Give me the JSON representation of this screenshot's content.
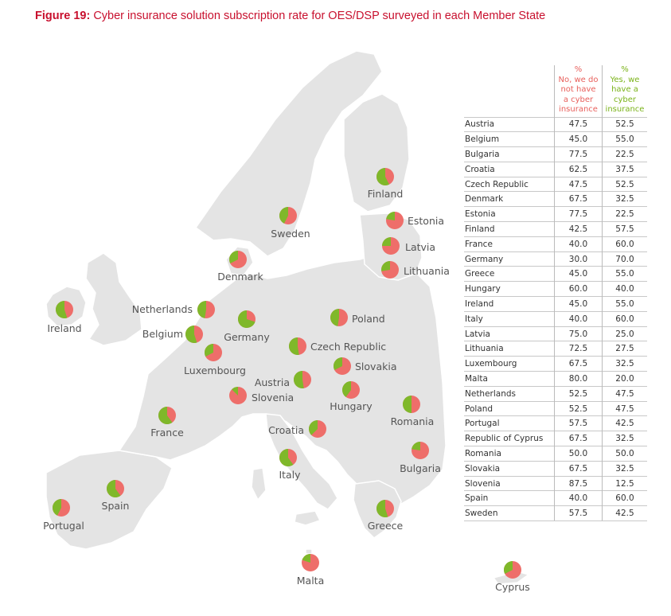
{
  "figure": {
    "label": "Figure 19:",
    "title": " Cyber insurance solution subscription rate for OES/DSP surveyed in each Member State"
  },
  "colors": {
    "no": "#ee6e6a",
    "yes": "#7fb82a",
    "land": "#e4e4e4",
    "border": "#ffffff"
  },
  "table": {
    "header_no": [
      "%",
      "No, we do",
      "not have",
      "a cyber",
      "insurance"
    ],
    "header_yes": [
      "%",
      "Yes, we",
      "have a",
      "cyber",
      "insurance"
    ]
  },
  "chart_data": {
    "type": "pie",
    "series_names": [
      "No, we do not have a cyber insurance",
      "Yes, we have a cyber insurance"
    ],
    "rows": [
      {
        "country": "Austria",
        "no": 47.5,
        "yes": 52.5
      },
      {
        "country": "Belgium",
        "no": 45.0,
        "yes": 55.0
      },
      {
        "country": "Bulgaria",
        "no": 77.5,
        "yes": 22.5
      },
      {
        "country": "Croatia",
        "no": 62.5,
        "yes": 37.5
      },
      {
        "country": "Czech Republic",
        "no": 47.5,
        "yes": 52.5
      },
      {
        "country": "Denmark",
        "no": 67.5,
        "yes": 32.5
      },
      {
        "country": "Estonia",
        "no": 77.5,
        "yes": 22.5
      },
      {
        "country": "Finland",
        "no": 42.5,
        "yes": 57.5
      },
      {
        "country": "France",
        "no": 40.0,
        "yes": 60.0
      },
      {
        "country": "Germany",
        "no": 30.0,
        "yes": 70.0
      },
      {
        "country": "Greece",
        "no": 45.0,
        "yes": 55.0
      },
      {
        "country": "Hungary",
        "no": 60.0,
        "yes": 40.0
      },
      {
        "country": "Ireland",
        "no": 45.0,
        "yes": 55.0
      },
      {
        "country": "Italy",
        "no": 40.0,
        "yes": 60.0
      },
      {
        "country": "Latvia",
        "no": 75.0,
        "yes": 25.0
      },
      {
        "country": "Lithuania",
        "no": 72.5,
        "yes": 27.5
      },
      {
        "country": "Luxembourg",
        "no": 67.5,
        "yes": 32.5
      },
      {
        "country": "Malta",
        "no": 80.0,
        "yes": 20.0
      },
      {
        "country": "Netherlands",
        "no": 52.5,
        "yes": 47.5
      },
      {
        "country": "Poland",
        "no": 52.5,
        "yes": 47.5
      },
      {
        "country": "Portugal",
        "no": 57.5,
        "yes": 42.5
      },
      {
        "country": "Republic of Cyprus",
        "no": 67.5,
        "yes": 32.5
      },
      {
        "country": "Romania",
        "no": 50.0,
        "yes": 50.0
      },
      {
        "country": "Slovakia",
        "no": 67.5,
        "yes": 32.5
      },
      {
        "country": "Slovenia",
        "no": 87.5,
        "yes": 12.5
      },
      {
        "country": "Spain",
        "no": 40.0,
        "yes": 60.0
      },
      {
        "country": "Sweden",
        "no": 57.5,
        "yes": 42.5
      }
    ],
    "map_labels": {
      "Austria": "Austria",
      "Belgium": "Belgium",
      "Bulgaria": "Bulgaria",
      "Croatia": "Croatia",
      "Czech Republic": "Czech Republic",
      "Denmark": "Denmark",
      "Estonia": "Estonia",
      "Finland": "Finland",
      "France": "France",
      "Germany": "Germany",
      "Greece": "Greece",
      "Hungary": "Hungary",
      "Ireland": "Ireland",
      "Italy": "Italy",
      "Latvia": "Latvia",
      "Lithuania": "Lithuania",
      "Luxembourg": "Luxembourg",
      "Malta": "Malta",
      "Netherlands": "Netherlands",
      "Poland": "Poland",
      "Portugal": "Portugal",
      "Republic of Cyprus": "Cyprus",
      "Romania": "Romania",
      "Slovakia": "Slovakia",
      "Slovenia": "Slovenia",
      "Spain": "Spain",
      "Sweden": "Sweden"
    }
  }
}
